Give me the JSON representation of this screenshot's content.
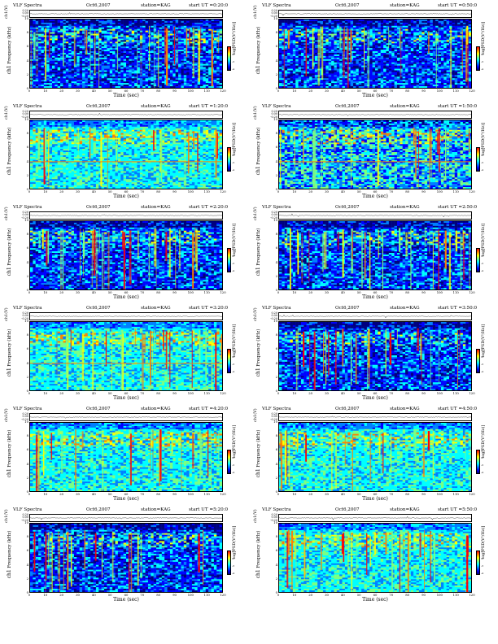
{
  "colors": {
    "colormap": [
      "#00007f",
      "#0000ff",
      "#007fff",
      "#00ffff",
      "#7fff7f",
      "#ffff00",
      "#ff7f00",
      "#ff0000"
    ],
    "axis": "#000000",
    "background": "#ffffff"
  },
  "common": {
    "title": "VLF Spectra",
    "date": "Oct6,2007",
    "station": "station=KAG",
    "xlabel": "Time (sec)",
    "ts_ylabel": "ch1(V)",
    "spec_ylabel_ch": "ch1",
    "spec_ylabel": "Frequency (kHz)",
    "cbar_label": "log[PSD(V²/Hz)]",
    "x_ticks": [
      "0",
      "10",
      "20",
      "30",
      "40",
      "50",
      "60",
      "70",
      "80",
      "90",
      "100",
      "110",
      "120"
    ],
    "y_ticks": [
      "0",
      "2",
      "4",
      "6",
      "8",
      "10"
    ],
    "ts_ticks": [
      "0.20",
      "0.00",
      "-0.20"
    ],
    "cbar_ticks": [
      "-1",
      "-2",
      "-3",
      "-4"
    ]
  },
  "panels": [
    {
      "start": "start  UT =0:20:0",
      "style": "blue",
      "line_freq": 0
    },
    {
      "start": "start  UT =0:50:0",
      "style": "blue",
      "line_freq": 0
    },
    {
      "start": "start  UT =1:20:0",
      "style": "cyan",
      "line_freq": 4
    },
    {
      "start": "start  UT =1:50:0",
      "style": "mixed",
      "line_freq": 4
    },
    {
      "start": "start  UT =2:20:0",
      "style": "blue",
      "line_freq": 0
    },
    {
      "start": "start  UT =2:50:0",
      "style": "blue",
      "line_freq": 0
    },
    {
      "start": "start  UT =3:20:0",
      "style": "cyan",
      "line_freq": 4
    },
    {
      "start": "start  UT =3:50:0",
      "style": "blue",
      "line_freq": 0
    },
    {
      "start": "start  UT =4:20:0",
      "style": "cyan",
      "line_freq": 0
    },
    {
      "start": "start  UT =4:50:0",
      "style": "cyan",
      "line_freq": 0
    },
    {
      "start": "start  UT =5:20:0",
      "style": "blue",
      "line_freq": 0
    },
    {
      "start": "start  UT =5:50:0",
      "style": "cyan",
      "line_freq": 0
    }
  ]
}
